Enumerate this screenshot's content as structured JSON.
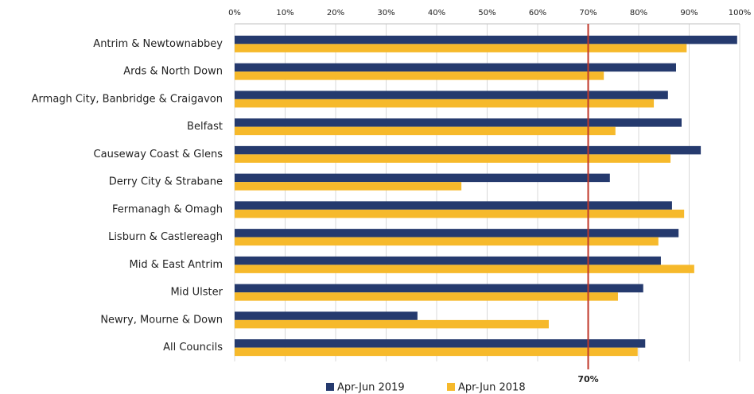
{
  "chart_data": {
    "type": "hbar",
    "categories": [
      "Antrim & Newtownabbey",
      "Ards & North Down",
      "Armagh City, Banbridge & Craigavon",
      "Belfast",
      "Causeway Coast & Glens",
      "Derry City & Strabane",
      "Fermanagh & Omagh",
      "Lisburn & Castlereagh",
      "Mid & East Antrim",
      "Mid Ulster",
      "Newry, Mourne & Down",
      "All Councils"
    ],
    "series": [
      {
        "name": "Apr-Jun 2019",
        "color": "#253a6e",
        "values": [
          99.5,
          87.4,
          85.8,
          88.5,
          92.3,
          74.3,
          86.6,
          87.9,
          84.4,
          80.9,
          36.2,
          81.3
        ]
      },
      {
        "name": "Apr-Jun 2018",
        "color": "#f6b92b",
        "values": [
          89.5,
          73.1,
          83,
          75.4,
          86.3,
          44.9,
          89,
          83.9,
          91,
          75.9,
          62.2,
          79.8
        ]
      }
    ],
    "xlim": [
      0,
      100
    ],
    "xticks": [
      {
        "value": 0,
        "label": "0%"
      },
      {
        "value": 10,
        "label": "10%"
      },
      {
        "value": 20,
        "label": "20%"
      },
      {
        "value": 30,
        "label": "30%"
      },
      {
        "value": 40,
        "label": "40%"
      },
      {
        "value": 50,
        "label": "50%"
      },
      {
        "value": 60,
        "label": "60%"
      },
      {
        "value": 70,
        "label": "70%"
      },
      {
        "value": 80,
        "label": "80%"
      },
      {
        "value": 90,
        "label": "90%"
      },
      {
        "value": 100,
        "label": "100%"
      }
    ],
    "grid": true,
    "reference_line": {
      "value": 70,
      "label": "70%",
      "color": "#c0392b"
    },
    "legend": "bottom"
  }
}
